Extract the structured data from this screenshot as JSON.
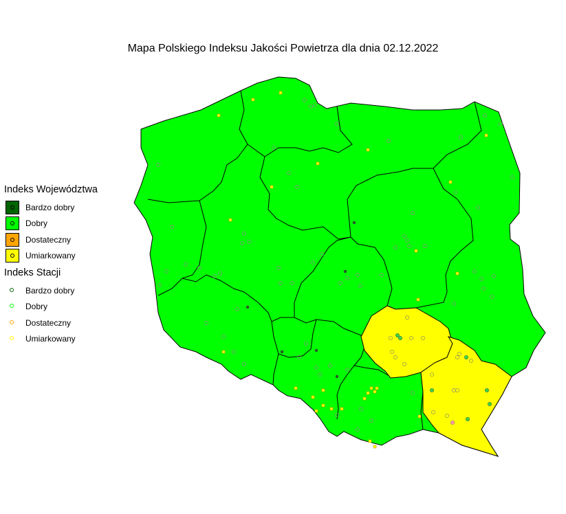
{
  "title": "Mapa Polskiego Indeksu Jakości Powietrza dla dnia 02.12.2022",
  "legend": {
    "voivodeship_title": "Indeks Województwa",
    "station_title": "Indeks Stacji",
    "voivodeship_items": [
      {
        "label": "Bardzo dobry",
        "color": "#006400"
      },
      {
        "label": "Dobry",
        "color": "#00ff00"
      },
      {
        "label": "Dostateczny",
        "color": "#ffa500"
      },
      {
        "label": "Umiarkowany",
        "color": "#ffff00"
      }
    ],
    "station_items": [
      {
        "label": "Bardzo dobry",
        "color": "#006400"
      },
      {
        "label": "Dobry",
        "color": "#00ff00"
      },
      {
        "label": "Dostateczny",
        "color": "#ffa500"
      },
      {
        "label": "Umiarkowany",
        "color": "#ffff00"
      }
    ]
  },
  "colors": {
    "dobry_fill": "#00ff00",
    "umiarkowany_fill": "#ffff00",
    "border": "#000000"
  },
  "voivodeships": [
    {
      "name": "zachodniopomorskie",
      "index": "Dobry"
    },
    {
      "name": "pomorskie",
      "index": "Dobry"
    },
    {
      "name": "warmińsko-mazurskie",
      "index": "Dobry"
    },
    {
      "name": "podlaskie",
      "index": "Dobry"
    },
    {
      "name": "lubuskie",
      "index": "Dobry"
    },
    {
      "name": "wielkopolskie",
      "index": "Dobry"
    },
    {
      "name": "kujawsko-pomorskie",
      "index": "Dobry"
    },
    {
      "name": "mazowieckie",
      "index": "Dobry"
    },
    {
      "name": "łódzkie",
      "index": "Dobry"
    },
    {
      "name": "lubelskie",
      "index": "Dobry"
    },
    {
      "name": "dolnośląskie",
      "index": "Dobry"
    },
    {
      "name": "opolskie",
      "index": "Dobry"
    },
    {
      "name": "śląskie",
      "index": "Dobry"
    },
    {
      "name": "małopolskie",
      "index": "Dobry"
    },
    {
      "name": "świętokrzyskie",
      "index": "Umiarkowany"
    },
    {
      "name": "podkarpackie",
      "index": "Umiarkowany"
    }
  ]
}
